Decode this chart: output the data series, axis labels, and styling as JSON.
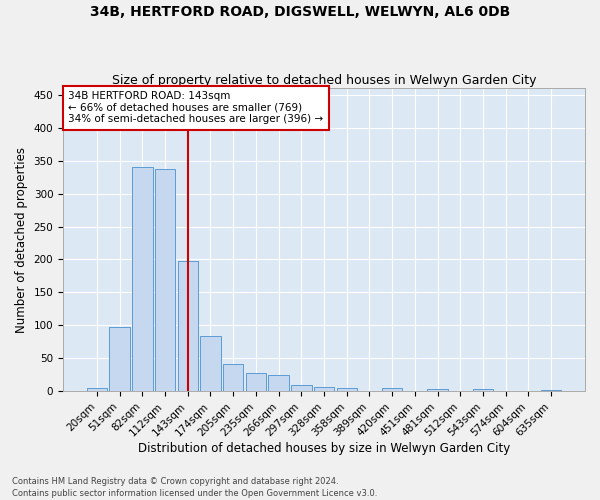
{
  "title": "34B, HERTFORD ROAD, DIGSWELL, WELWYN, AL6 0DB",
  "subtitle": "Size of property relative to detached houses in Welwyn Garden City",
  "xlabel": "Distribution of detached houses by size in Welwyn Garden City",
  "ylabel": "Number of detached properties",
  "footnote": "Contains HM Land Registry data © Crown copyright and database right 2024.\nContains public sector information licensed under the Open Government Licence v3.0.",
  "bar_labels": [
    "20sqm",
    "51sqm",
    "82sqm",
    "112sqm",
    "143sqm",
    "174sqm",
    "205sqm",
    "235sqm",
    "266sqm",
    "297sqm",
    "328sqm",
    "358sqm",
    "389sqm",
    "420sqm",
    "451sqm",
    "481sqm",
    "512sqm",
    "543sqm",
    "574sqm",
    "604sqm",
    "635sqm"
  ],
  "bar_values": [
    5,
    98,
    340,
    337,
    197,
    84,
    41,
    28,
    25,
    10,
    7,
    5,
    0,
    5,
    0,
    4,
    0,
    4,
    0,
    0,
    2
  ],
  "bar_color": "#c5d8f0",
  "bar_edge_color": "#5b9bd5",
  "vline_x": 4,
  "vline_color": "#cc0000",
  "annotation_text": "34B HERTFORD ROAD: 143sqm\n← 66% of detached houses are smaller (769)\n34% of semi-detached houses are larger (396) →",
  "annotation_box_color": "#cc0000",
  "ylim": [
    0,
    460
  ],
  "yticks": [
    0,
    50,
    100,
    150,
    200,
    250,
    300,
    350,
    400,
    450
  ],
  "bg_color": "#dde8f5",
  "grid_color": "#ffffff",
  "fig_bg_color": "#f0f0f0",
  "title_fontsize": 10,
  "subtitle_fontsize": 9,
  "tick_fontsize": 7.5,
  "ylabel_fontsize": 8.5,
  "xlabel_fontsize": 8.5,
  "annotation_fontsize": 7.5,
  "footnote_fontsize": 6
}
